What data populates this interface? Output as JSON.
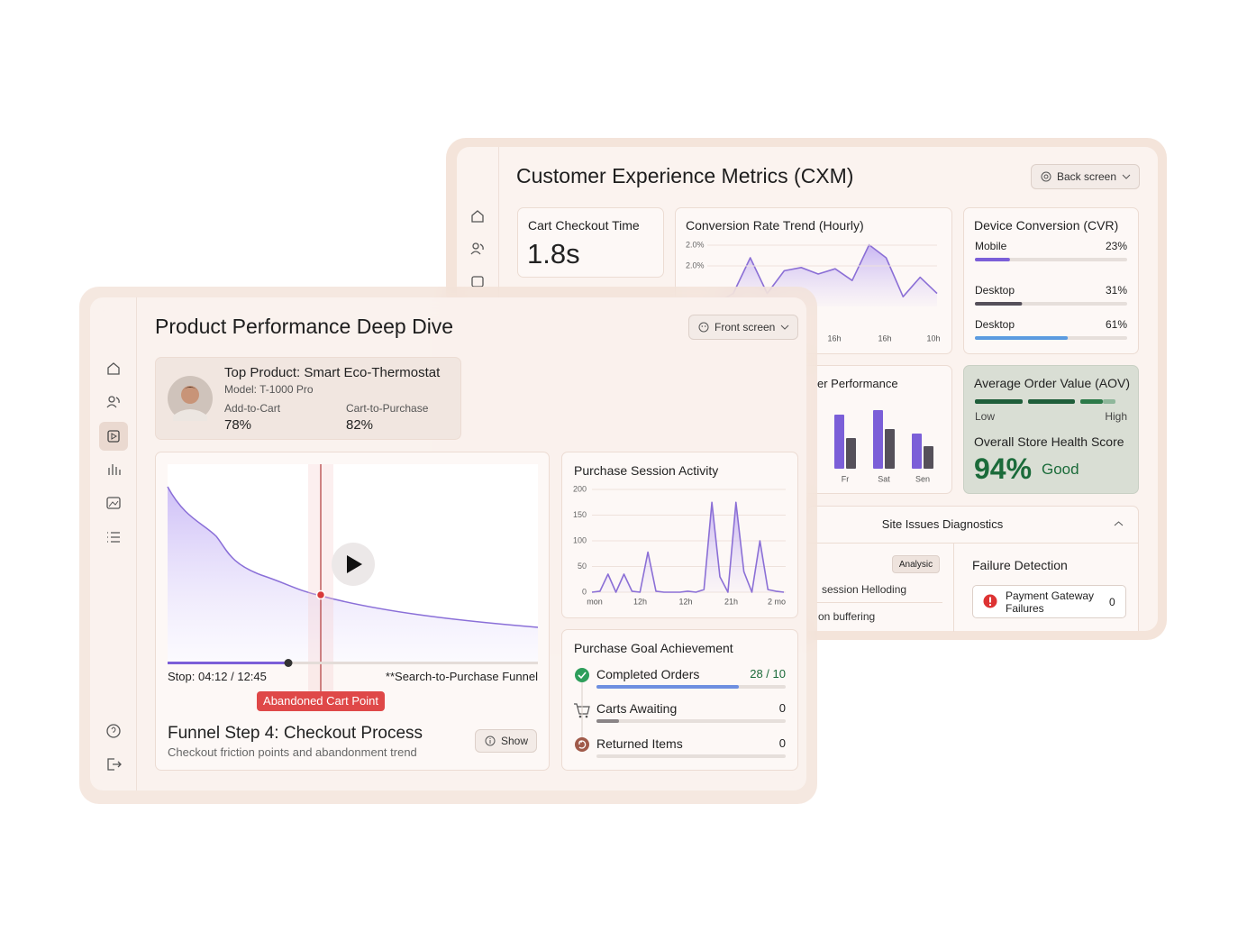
{
  "back_panel": {
    "title": "Customer Experience Metrics (CXM)",
    "button": "Back screen",
    "checkout": {
      "label": "Cart Checkout Time",
      "value": "1.8s"
    },
    "trend": {
      "type": "line",
      "title": "Conversion Rate Trend (Hourly)",
      "ytick_labels": [
        "2.0%",
        "2.0%"
      ],
      "x_labels": [
        "16h",
        "16h",
        "10h"
      ],
      "ylim": [
        0,
        100
      ],
      "values": [
        5,
        20,
        75,
        20,
        55,
        60,
        50,
        58,
        40,
        95,
        75,
        15,
        45,
        20
      ],
      "color": "#8b6fd6"
    },
    "device": {
      "title": "Device Conversion (CVR)",
      "categories": [
        "Mobile",
        "Desktop",
        "Desktop"
      ],
      "values": [
        23,
        31,
        61
      ],
      "value_labels": [
        "23%",
        "31%",
        "61%"
      ],
      "colors": [
        "#7b5fd8",
        "#55505a",
        "#5b9be0"
      ],
      "xlim": [
        0,
        100
      ]
    },
    "performance": {
      "type": "bar",
      "title": "er Performance",
      "categories": [
        "Fr",
        "Sat",
        "Sen"
      ],
      "ylim": [
        0,
        70
      ],
      "series": [
        {
          "color": "#7b5fd8",
          "values": [
            60,
            65,
            39
          ]
        },
        {
          "color": "#55505a",
          "values": [
            34,
            44,
            25
          ]
        }
      ]
    },
    "aov": {
      "title": "Average Order Value (AOV)",
      "low": "Low",
      "high": "High",
      "health_label": "Overall Store Health Score",
      "health_value": "94%",
      "health_status": "Good"
    },
    "issues": {
      "title": "Site Issues Diagnostics",
      "tag": "Analysic",
      "items": [
        "session Helloding",
        "on buffering"
      ],
      "failure_title": "Failure Detection",
      "failure_name": "Payment Gateway Failures",
      "failure_count": "0"
    }
  },
  "front_panel": {
    "title": "Product Performance Deep Dive",
    "button": "Front screen",
    "product": {
      "name": "Top Product: Smart Eco-Thermostat",
      "model": "Model: T-1000 Pro",
      "stat1_label": "Add-to-Cart",
      "stat1_value": "78%",
      "stat2_label": "Cart-to-Purchase",
      "stat2_value": "82%"
    },
    "video": {
      "time": "Stop: 04:12 / 12:45",
      "funnel": "**Search-to-Purchase Funnel",
      "marker": "Abandoned Cart Point",
      "step_title": "Funnel Step 4: Checkout Process",
      "step_subtitle": "Checkout friction points and abandonment trend",
      "button": "Show"
    },
    "session": {
      "type": "line",
      "title": "Purchase Session Activity",
      "ylim": [
        0,
        200
      ],
      "yticks": [
        0,
        50,
        100,
        150,
        200
      ],
      "x_labels": [
        "mon",
        "12h",
        "12h",
        "21h",
        "2 mo"
      ],
      "values": [
        0,
        2,
        35,
        0,
        35,
        2,
        0,
        78,
        2,
        0,
        0,
        0,
        2,
        0,
        5,
        175,
        30,
        0,
        175,
        40,
        0,
        100,
        5,
        2,
        0
      ],
      "color": "#8b6fd6"
    },
    "goals": {
      "title": "Purchase Goal Achievement",
      "items": [
        {
          "label": "Completed Orders",
          "value": "28 / 10"
        },
        {
          "label": "Carts Awaiting",
          "value": "0"
        },
        {
          "label": "Returned Items",
          "value": "0"
        }
      ]
    }
  }
}
